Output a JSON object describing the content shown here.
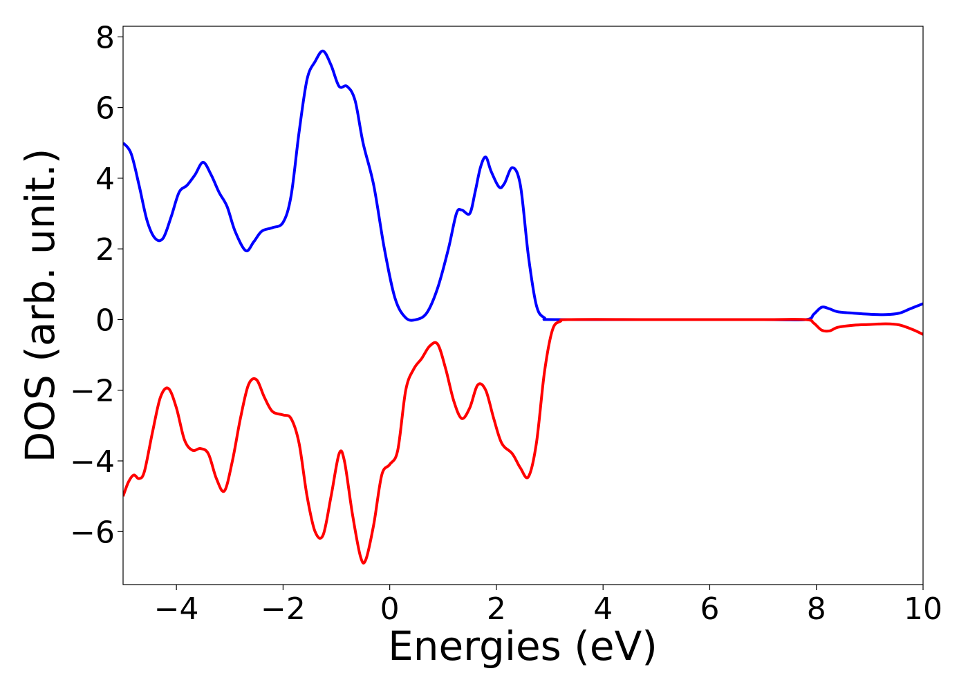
{
  "chart_data": {
    "type": "line",
    "title": "",
    "xlabel": "Energies (eV)",
    "ylabel": "DOS (arb. unit.)",
    "xlim": [
      -5,
      10
    ],
    "ylim": [
      -7.5,
      8.3
    ],
    "grid": false,
    "legend": "none",
    "x_ticks": [
      -4,
      -2,
      0,
      2,
      4,
      6,
      8,
      10
    ],
    "x_tick_labels": [
      "−4",
      "−2",
      "0",
      "2",
      "4",
      "6",
      "8",
      "10"
    ],
    "y_ticks": [
      -6,
      -4,
      -2,
      0,
      2,
      4,
      6,
      8
    ],
    "y_tick_labels": [
      "−6",
      "−4",
      "−2",
      "0",
      "2",
      "4",
      "6",
      "8"
    ],
    "series": [
      {
        "color": "#0000ff",
        "points": [
          [
            -5.0,
            5.0
          ],
          [
            -4.85,
            4.7
          ],
          [
            -4.7,
            3.8
          ],
          [
            -4.55,
            2.8
          ],
          [
            -4.4,
            2.3
          ],
          [
            -4.25,
            2.3
          ],
          [
            -4.1,
            2.9
          ],
          [
            -3.95,
            3.6
          ],
          [
            -3.8,
            3.8
          ],
          [
            -3.65,
            4.1
          ],
          [
            -3.5,
            4.45
          ],
          [
            -3.35,
            4.1
          ],
          [
            -3.2,
            3.6
          ],
          [
            -3.05,
            3.2
          ],
          [
            -2.9,
            2.5
          ],
          [
            -2.7,
            1.95
          ],
          [
            -2.55,
            2.2
          ],
          [
            -2.4,
            2.5
          ],
          [
            -2.2,
            2.6
          ],
          [
            -2.0,
            2.75
          ],
          [
            -1.85,
            3.5
          ],
          [
            -1.7,
            5.3
          ],
          [
            -1.55,
            6.8
          ],
          [
            -1.4,
            7.3
          ],
          [
            -1.25,
            7.6
          ],
          [
            -1.1,
            7.2
          ],
          [
            -0.95,
            6.6
          ],
          [
            -0.8,
            6.6
          ],
          [
            -0.65,
            6.2
          ],
          [
            -0.5,
            5.0
          ],
          [
            -0.3,
            3.8
          ],
          [
            -0.1,
            2.0
          ],
          [
            0.1,
            0.6
          ],
          [
            0.3,
            0.05
          ],
          [
            0.5,
            0.0
          ],
          [
            0.7,
            0.2
          ],
          [
            0.9,
            0.9
          ],
          [
            1.1,
            2.0
          ],
          [
            1.25,
            3.0
          ],
          [
            1.35,
            3.1
          ],
          [
            1.5,
            3.0
          ],
          [
            1.6,
            3.6
          ],
          [
            1.7,
            4.3
          ],
          [
            1.8,
            4.6
          ],
          [
            1.9,
            4.2
          ],
          [
            2.05,
            3.75
          ],
          [
            2.15,
            3.85
          ],
          [
            2.3,
            4.3
          ],
          [
            2.45,
            3.8
          ],
          [
            2.6,
            1.8
          ],
          [
            2.75,
            0.4
          ],
          [
            2.9,
            0.05
          ],
          [
            3.1,
            0.0
          ],
          [
            5.0,
            0.0
          ],
          [
            7.0,
            0.0
          ],
          [
            7.8,
            0.0
          ],
          [
            7.95,
            0.15
          ],
          [
            8.1,
            0.35
          ],
          [
            8.25,
            0.3
          ],
          [
            8.4,
            0.22
          ],
          [
            8.7,
            0.18
          ],
          [
            9.0,
            0.15
          ],
          [
            9.3,
            0.14
          ],
          [
            9.55,
            0.18
          ],
          [
            9.75,
            0.3
          ],
          [
            10.0,
            0.45
          ]
        ]
      },
      {
        "color": "#ff0000",
        "points": [
          [
            -5.0,
            -5.0
          ],
          [
            -4.9,
            -4.6
          ],
          [
            -4.8,
            -4.4
          ],
          [
            -4.7,
            -4.5
          ],
          [
            -4.6,
            -4.3
          ],
          [
            -4.45,
            -3.2
          ],
          [
            -4.3,
            -2.2
          ],
          [
            -4.15,
            -1.95
          ],
          [
            -4.0,
            -2.5
          ],
          [
            -3.85,
            -3.4
          ],
          [
            -3.7,
            -3.7
          ],
          [
            -3.55,
            -3.65
          ],
          [
            -3.4,
            -3.8
          ],
          [
            -3.25,
            -4.5
          ],
          [
            -3.1,
            -4.85
          ],
          [
            -2.95,
            -4.0
          ],
          [
            -2.8,
            -2.8
          ],
          [
            -2.65,
            -1.85
          ],
          [
            -2.5,
            -1.7
          ],
          [
            -2.35,
            -2.2
          ],
          [
            -2.2,
            -2.6
          ],
          [
            -2.0,
            -2.7
          ],
          [
            -1.85,
            -2.8
          ],
          [
            -1.7,
            -3.5
          ],
          [
            -1.55,
            -5.0
          ],
          [
            -1.4,
            -6.0
          ],
          [
            -1.25,
            -6.1
          ],
          [
            -1.1,
            -5.0
          ],
          [
            -0.95,
            -3.8
          ],
          [
            -0.85,
            -4.0
          ],
          [
            -0.7,
            -5.5
          ],
          [
            -0.55,
            -6.7
          ],
          [
            -0.45,
            -6.8
          ],
          [
            -0.3,
            -5.8
          ],
          [
            -0.15,
            -4.4
          ],
          [
            0.0,
            -4.1
          ],
          [
            0.15,
            -3.7
          ],
          [
            0.3,
            -2.0
          ],
          [
            0.45,
            -1.4
          ],
          [
            0.6,
            -1.1
          ],
          [
            0.75,
            -0.75
          ],
          [
            0.9,
            -0.7
          ],
          [
            1.05,
            -1.4
          ],
          [
            1.2,
            -2.3
          ],
          [
            1.35,
            -2.8
          ],
          [
            1.5,
            -2.5
          ],
          [
            1.65,
            -1.85
          ],
          [
            1.8,
            -2.0
          ],
          [
            1.95,
            -2.8
          ],
          [
            2.1,
            -3.5
          ],
          [
            2.3,
            -3.8
          ],
          [
            2.45,
            -4.2
          ],
          [
            2.6,
            -4.45
          ],
          [
            2.75,
            -3.5
          ],
          [
            2.9,
            -1.5
          ],
          [
            3.05,
            -0.3
          ],
          [
            3.2,
            -0.05
          ],
          [
            3.4,
            0.0
          ],
          [
            5.0,
            0.0
          ],
          [
            7.0,
            0.0
          ],
          [
            7.8,
            0.0
          ],
          [
            7.95,
            -0.1
          ],
          [
            8.1,
            -0.3
          ],
          [
            8.25,
            -0.32
          ],
          [
            8.4,
            -0.22
          ],
          [
            8.7,
            -0.16
          ],
          [
            9.0,
            -0.14
          ],
          [
            9.3,
            -0.12
          ],
          [
            9.55,
            -0.15
          ],
          [
            9.8,
            -0.28
          ],
          [
            10.0,
            -0.42
          ]
        ]
      }
    ]
  }
}
